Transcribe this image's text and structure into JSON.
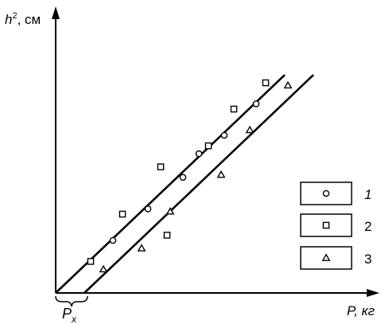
{
  "chart_data": {
    "type": "scatter",
    "title": "",
    "xlabel": "P, кг",
    "ylabel": "h², см",
    "ylabel_base": "h",
    "ylabel_sup": "2",
    "ylabel_unit": ", см",
    "xlim": [
      0,
      11
    ],
    "ylim": [
      0,
      10
    ],
    "grid": false,
    "offset_annotation": "P",
    "offset_annotation_sub": "x",
    "offset_value": 0.9,
    "lines": [
      {
        "name": "fit-1-2",
        "x": [
          0,
          7.2
        ],
        "y": [
          0,
          8.3
        ]
      },
      {
        "name": "fit-3",
        "x": [
          0.9,
          8.1
        ],
        "y": [
          0,
          8.3
        ]
      }
    ],
    "series": [
      {
        "marker": "circle",
        "x": [
          1.8,
          2.9,
          4.0,
          4.5,
          5.3,
          6.3
        ],
        "y": [
          2.0,
          3.2,
          4.4,
          5.3,
          6.0,
          7.2
        ]
      },
      {
        "marker": "square",
        "x": [
          1.1,
          2.1,
          3.3,
          3.5,
          4.8,
          5.6,
          6.6
        ],
        "y": [
          1.2,
          3.0,
          4.8,
          2.2,
          5.6,
          7.0,
          8.0
        ]
      },
      {
        "marker": "triangle",
        "x": [
          1.5,
          2.7,
          3.6,
          5.2,
          6.1,
          7.3
        ],
        "y": [
          0.9,
          1.7,
          3.1,
          4.5,
          6.2,
          7.9
        ]
      }
    ],
    "legend": {
      "placement": "right",
      "entries": [
        {
          "marker": "circle",
          "label": "1",
          "italic": true
        },
        {
          "marker": "square",
          "label": "2",
          "italic": false
        },
        {
          "marker": "triangle",
          "label": "3",
          "italic": false
        }
      ]
    }
  }
}
